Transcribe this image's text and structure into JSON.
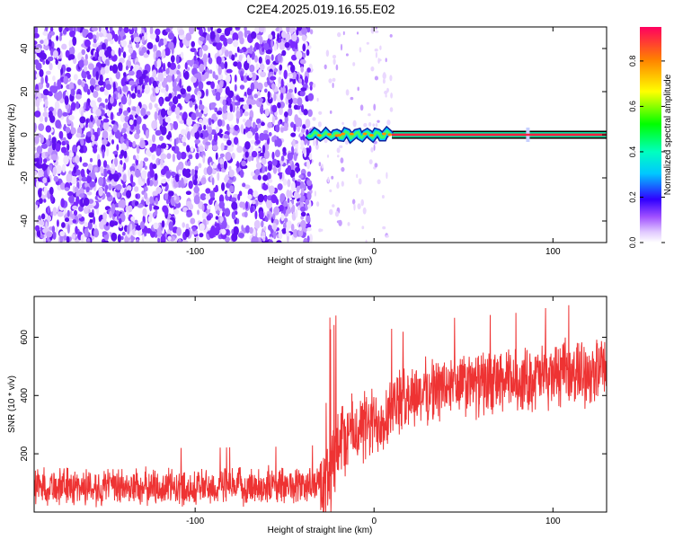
{
  "figure": {
    "title": "C2E4.2025.019.16.55.E02"
  },
  "chart_data": [
    {
      "type": "heatmap",
      "xlabel": "Height of straight line (km)",
      "ylabel": "Frequency (Hz)",
      "xlim": [
        -190,
        130
      ],
      "ylim": [
        -50,
        50
      ],
      "xticks": [
        -100,
        0,
        100
      ],
      "yticks": [
        -40,
        -20,
        0,
        20,
        40
      ],
      "grid": false,
      "colorbar": {
        "label": "Normalized spectral amplitude",
        "range": [
          0.0,
          0.95
        ],
        "ticks": [
          "0.0",
          "0.2",
          "0.4",
          "0.6",
          "0.8"
        ]
      },
      "features": {
        "noise_region_x": [
          -190,
          -35
        ],
        "sparse_region_x": [
          -35,
          10
        ],
        "wobbling_line_x": [
          -37,
          10
        ],
        "steady_line_x": [
          10,
          130
        ],
        "line_frequency": 0
      }
    },
    {
      "type": "line",
      "xlabel": "Height of straight line (km)",
      "ylabel": "SNR (10 * v/v)",
      "xlim": [
        -190,
        130
      ],
      "ylim": [
        0,
        740
      ],
      "xticks": [
        -100,
        0,
        100
      ],
      "yticks": [
        200,
        400,
        600
      ],
      "color": "#ee3333",
      "grid": false,
      "series": [
        {
          "x": [
            -190,
            -150,
            -100,
            -50,
            -30,
            -25,
            -20,
            -10,
            0,
            10,
            20,
            40,
            60,
            80,
            100,
            130
          ],
          "values": [
            90,
            85,
            85,
            90,
            95,
            110,
            250,
            280,
            300,
            360,
            400,
            430,
            440,
            450,
            470,
            490
          ]
        }
      ]
    }
  ]
}
